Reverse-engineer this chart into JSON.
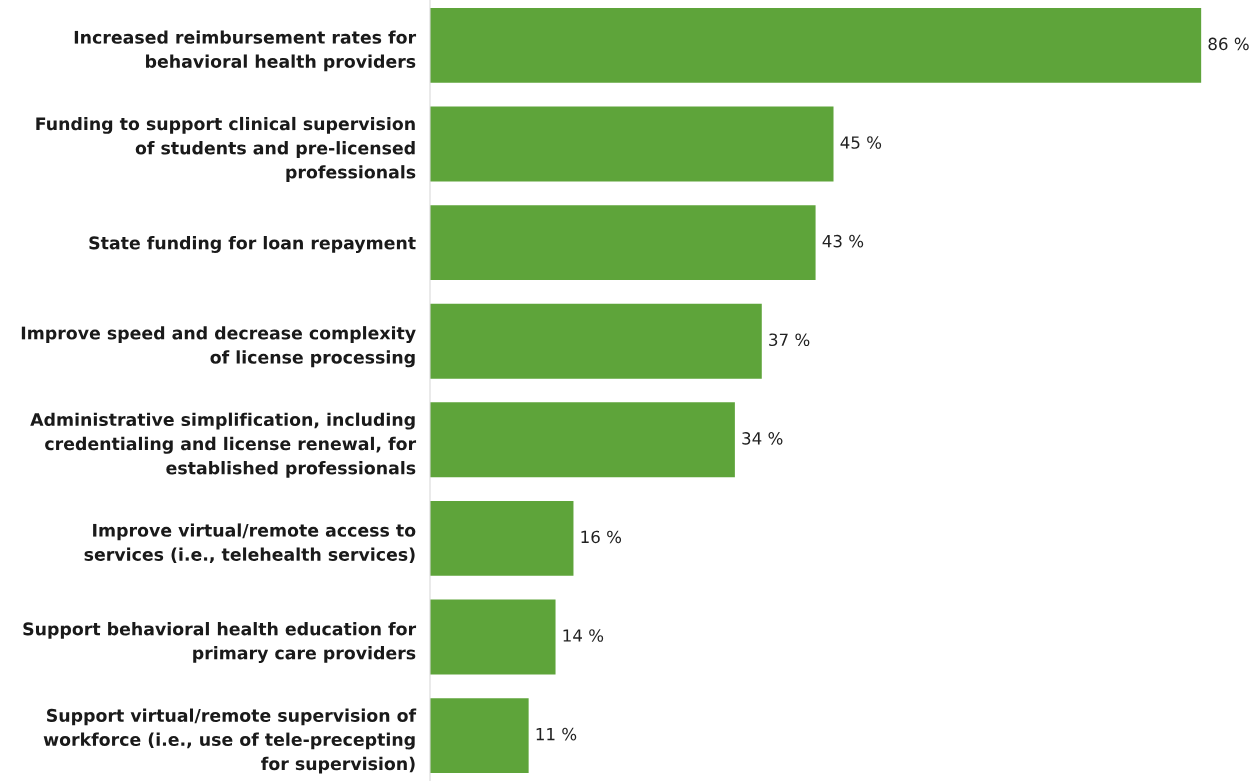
{
  "chart_data": {
    "type": "bar",
    "orientation": "horizontal",
    "categories": [
      "Increased reimbursement rates for\nbehavioral health providers",
      "Funding to support clinical supervision\nof students and pre-licensed\nprofessionals",
      "State funding for loan repayment",
      "Improve speed and decrease complexity\nof license processing",
      "Administrative simplification, including\ncredentialing and license renewal, for\nestablished professionals",
      "Improve virtual/remote access to\nservices (i.e., telehealth services)",
      "Support behavioral health education for\nprimary care providers",
      "Support virtual/remote supervision of\nworkforce (i.e., use of tele-precepting\nfor supervision)"
    ],
    "values": [
      86,
      45,
      43,
      37,
      34,
      16,
      14,
      11
    ],
    "value_labels": [
      "86 %",
      "45 %",
      "43 %",
      "37 %",
      "34 %",
      "16 %",
      "14 %",
      "11 %"
    ],
    "color": "#5ea43a",
    "grid": false,
    "legend": false
  }
}
